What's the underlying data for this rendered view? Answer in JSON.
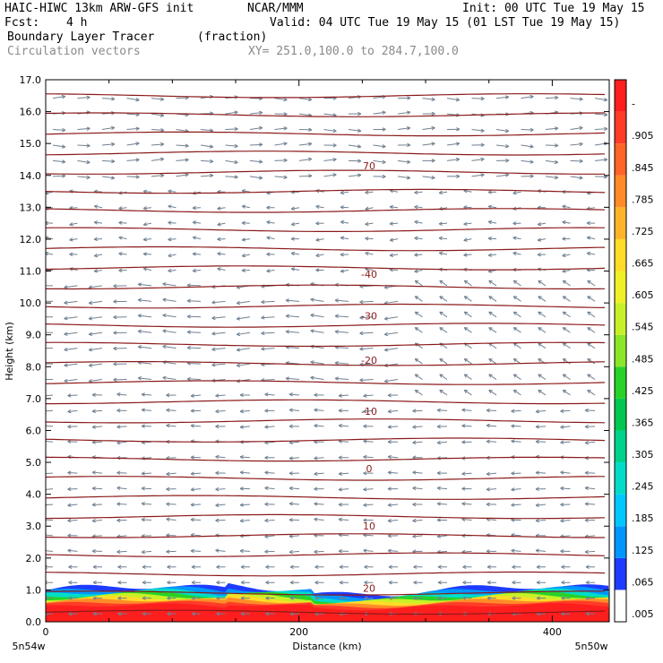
{
  "header": {
    "model": "HAIC-HIWC 13km ARW-GFS init",
    "org": "NCAR/MMM",
    "init": "Init: 00 UTC Tue 19 May 15",
    "fcst_label": "Fcst:",
    "fcst_value": "4 h",
    "valid": "Valid: 04 UTC Tue 19 May 15 (01 LST Tue 19 May 15)",
    "field_name": "Boundary Layer Tracer",
    "field_units": "(fraction)",
    "vectors": "Circulation vectors",
    "xy": "XY= 251.0,100.0 to 284.7,100.0"
  },
  "colors": {
    "contour": "#8b1a1a",
    "vector": "#708090",
    "colorbar": [
      "#ffffff",
      "#1e3cff",
      "#0096ff",
      "#00c8ff",
      "#00dcc8",
      "#00d28c",
      "#00c850",
      "#28d228",
      "#8ce628",
      "#c8f028",
      "#f0f028",
      "#ffdc28",
      "#ffb428",
      "#ff8c28",
      "#ff6428",
      "#ff3c28",
      "#ff1e1e"
    ]
  },
  "chart_data": {
    "type": "heatmap",
    "title": "Boundary Layer Tracer (fraction) with Circulation vectors",
    "xlabel": "Distance (km)",
    "ylabel": "Height (km)",
    "xlim": [
      0,
      445
    ],
    "ylim": [
      0,
      17
    ],
    "x_ticks": [
      0,
      200,
      400
    ],
    "y_ticks": [
      "0.0",
      "1.0",
      "2.0",
      "3.0",
      "4.0",
      "5.0",
      "6.0",
      "7.0",
      "8.0",
      "9.0",
      "10.0",
      "11.0",
      "12.0",
      "13.0",
      "14.0",
      "15.0",
      "16.0",
      "17.0"
    ],
    "x_endpoint_labels": [
      "5n54w",
      "5n50w"
    ],
    "colorbar_labels": [
      ".005",
      ".065",
      ".125",
      ".185",
      ".245",
      ".305",
      ".365",
      ".425",
      ".485",
      ".545",
      ".605",
      ".665",
      ".725",
      ".785",
      ".845",
      ".905",
      "-"
    ],
    "contours": [
      {
        "label": "70",
        "height": 14.3
      },
      {
        "label": "-40",
        "height": 10.9
      },
      {
        "label": "-30",
        "height": 9.6
      },
      {
        "label": "-20",
        "height": 8.2
      },
      {
        "label": "-10",
        "height": 6.6
      },
      {
        "label": "0",
        "height": 4.8
      },
      {
        "label": "10",
        "height": 3.0
      },
      {
        "label": "20",
        "height": 1.05
      }
    ],
    "boundary_layer_top_km": 1.2,
    "grid": false
  }
}
